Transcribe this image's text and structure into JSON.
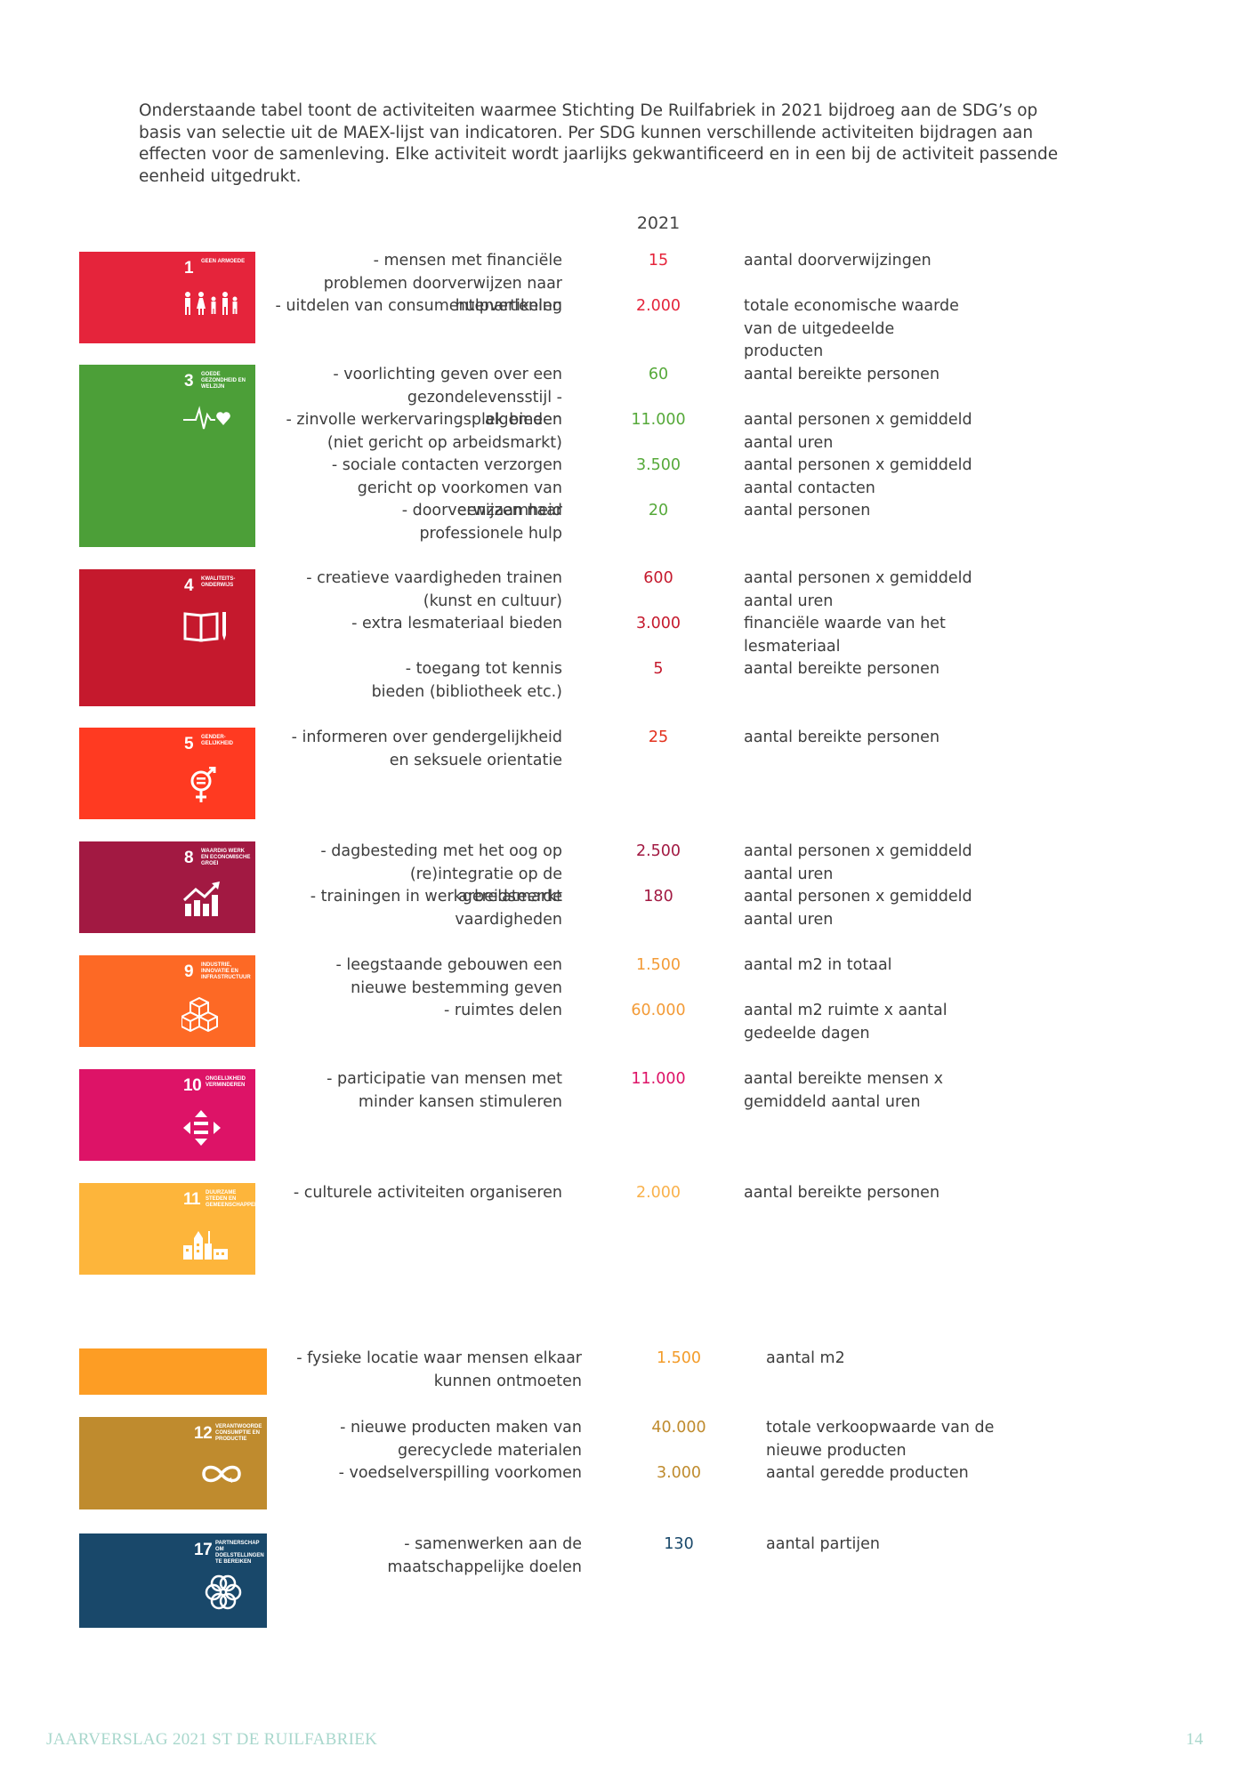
{
  "intro": "Onderstaande tabel toont de activiteiten waarmee Stichting De Ruilfabriek in 2021 bijdroeg aan de SDG’s op basis van selectie uit de MAEX-lijst van indicatoren. Per SDG kunnen verschillende activiteiten bijdragen aan effecten voor de samenleving. Elke activiteit wordt jaarlijks gekwantificeerd en in een bij de activiteit passende eenheid uitgedrukt.",
  "year_header": "2021",
  "colors": {
    "sdg1": "#e5243b",
    "sdg3": "#4c9f38",
    "sdg4": "#c5192d",
    "sdg5": "#ff3a21",
    "sdg8": "#a21942",
    "sdg9": "#fd6925",
    "sdg10": "#dd1367",
    "sdg11": "#fd9d24",
    "sdg12": "#bf8b2e",
    "sdg17": "#19486a"
  },
  "sdgs": {
    "sdg1": {
      "number": "1",
      "title": "GEEN ARMOEDE",
      "icon": "family-icon",
      "activities": [
        {
          "activity": "- mensen met financiële problemen doorverwijzen naar hulpverlening",
          "value": "15",
          "unit": "aantal doorverwijzingen"
        },
        {
          "activity": "- uitdelen van consumentenartikelen",
          "value": "2.000",
          "unit": "totale economische waarde van de uitgedeelde producten"
        }
      ]
    },
    "sdg3": {
      "number": "3",
      "title": "GOEDE GEZONDHEID EN WELZIJN",
      "icon": "heartbeat-icon",
      "activities": [
        {
          "activity": "- voorlichting geven over een gezondelevensstijl - algemeen",
          "value": "60",
          "unit": "aantal bereikte personen"
        },
        {
          "activity": "- zinvolle werkervaringsplek bieden (niet gericht op arbeidsmarkt)",
          "value": "11.000",
          "unit": "aantal personen x gemiddeld aantal uren"
        },
        {
          "activity": "- sociale contacten verzorgen gericht op voorkomen van eenzaamheid",
          "value": "3.500",
          "unit": "aantal personen x gemiddeld aantal contacten"
        },
        {
          "activity": "- doorverwijzen naar professionele hulp",
          "value": "20",
          "unit": "aantal personen"
        }
      ]
    },
    "sdg4": {
      "number": "4",
      "title": "KWALITEITS-ONDERWIJS",
      "icon": "book-icon",
      "activities": [
        {
          "activity": "- creatieve vaardigheden trainen (kunst en cultuur)",
          "value": "600",
          "unit": "aantal personen x gemiddeld aantal uren"
        },
        {
          "activity": "- extra lesmateriaal bieden",
          "value": "3.000",
          "unit": "financiële waarde van het lesmateriaal"
        },
        {
          "activity": "- toegang tot kennis bieden (bibliotheek etc.)",
          "value": "5",
          "unit": "aantal bereikte personen"
        }
      ]
    },
    "sdg5": {
      "number": "5",
      "title": "GENDER-GELIJKHEID",
      "icon": "gender-icon",
      "activities": [
        {
          "activity": "- informeren over gendergelijkheid en seksuele orientatie",
          "value": "25",
          "unit": "aantal bereikte personen"
        }
      ]
    },
    "sdg8": {
      "number": "8",
      "title": "WAARDIG WERK EN ECONOMISCHE GROEI",
      "icon": "growth-chart-icon",
      "activities": [
        {
          "activity": "- dagbesteding met het oog op (re)integratie op de arbeidsmarkt",
          "value": "2.500",
          "unit": "aantal personen x gemiddeld aantal uren"
        },
        {
          "activity": "- trainingen in werkgerelateerde vaardigheden",
          "value": "180",
          "unit": "aantal personen x gemiddeld aantal uren"
        }
      ]
    },
    "sdg9": {
      "number": "9",
      "title": "INDUSTRIE, INNOVATIE EN INFRASTRUCTUUR",
      "icon": "cubes-icon",
      "activities": [
        {
          "activity": "- leegstaande gebouwen een nieuwe bestemming geven",
          "value": "1.500",
          "unit": "aantal m2 in totaal"
        },
        {
          "activity": "- ruimtes delen",
          "value": "60.000",
          "unit": "aantal m2 ruimte x aantal gedeelde dagen"
        }
      ]
    },
    "sdg10": {
      "number": "10",
      "title": "ONGELIJKHEID VERMINDEREN",
      "icon": "equality-icon",
      "activities": [
        {
          "activity": "- participatie van mensen met minder kansen stimuleren",
          "value": "11.000",
          "unit": "aantal bereikte mensen x gemiddeld aantal uren"
        }
      ]
    },
    "sdg11": {
      "number": "11",
      "title": "DUURZAME STEDEN EN GEMEENSCHAPPEN",
      "icon": "city-icon",
      "activities": [
        {
          "activity": "- culturele activiteiten organiseren",
          "value": "2.000",
          "unit": "aantal bereikte personen"
        },
        {
          "activity": "- fysieke locatie waar mensen elkaar kunnen ontmoeten",
          "value": "1.500",
          "unit": "aantal m2"
        }
      ]
    },
    "sdg12": {
      "number": "12",
      "title": "VERANTWOORDE CONSUMPTIE EN PRODUCTIE",
      "icon": "infinity-icon",
      "activities": [
        {
          "activity": "- nieuwe producten maken van gerecyclede materialen",
          "value": "40.000",
          "unit": "totale verkoopwaarde van de nieuwe producten"
        },
        {
          "activity": "- voedselverspilling voorkomen",
          "value": "3.000",
          "unit": "aantal geredde producten"
        }
      ]
    },
    "sdg17": {
      "number": "17",
      "title": "PARTNERSCHAP OM DOELSTELLINGEN TE BEREIKEN",
      "icon": "partnership-rings-icon",
      "activities": [
        {
          "activity": "- samenwerken aan de maatschappelijke doelen",
          "value": "130",
          "unit": "aantal partijen"
        }
      ]
    }
  },
  "footer": {
    "left": "JAARVERSLAG 2021 ST DE RUILFABRIEK",
    "page_number": "14"
  }
}
